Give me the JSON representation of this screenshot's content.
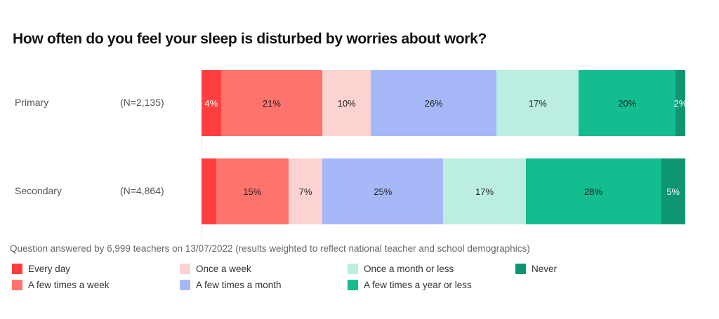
{
  "chart_data": {
    "type": "bar",
    "orientation": "horizontal",
    "stacked": true,
    "normalized": true,
    "title": "How often do you feel your sleep is disturbed by worries about work?",
    "xlabel": "",
    "ylabel": "",
    "categories": [
      "Primary",
      "Secondary"
    ],
    "category_n": [
      "(N=2,135)",
      "(N=4,864)"
    ],
    "series": [
      {
        "name": "Every day",
        "color": "#ff3f3f",
        "values": [
          4,
          3
        ],
        "labels": [
          "4%",
          ""
        ],
        "label_color": "#ffffff"
      },
      {
        "name": "A few times a week",
        "color": "#ff736d",
        "values": [
          21,
          15
        ],
        "labels": [
          "21%",
          "15%"
        ],
        "label_color": "#222222"
      },
      {
        "name": "Once a week",
        "color": "#fcd3d1",
        "values": [
          10,
          7
        ],
        "labels": [
          "10%",
          "7%"
        ],
        "label_color": "#222222"
      },
      {
        "name": "A few times a month",
        "color": "#a6b8f8",
        "values": [
          26,
          25
        ],
        "labels": [
          "26%",
          "25%"
        ],
        "label_color": "#222222"
      },
      {
        "name": "Once a month or less",
        "color": "#bbeee0",
        "values": [
          17,
          17
        ],
        "labels": [
          "17%",
          "17%"
        ],
        "label_color": "#222222"
      },
      {
        "name": "A few times a year or less",
        "color": "#13bd8f",
        "values": [
          20,
          28
        ],
        "labels": [
          "20%",
          "28%"
        ],
        "label_color": "#222222"
      },
      {
        "name": "Never",
        "color": "#0e9672",
        "values": [
          2,
          5
        ],
        "labels": [
          "2%",
          "5%"
        ],
        "label_color": "#ffffff"
      }
    ],
    "legend_position": "bottom",
    "grid": false,
    "xlim": [
      0,
      100
    ],
    "note": "Question answered by 6,999 teachers on 13/07/2022 (results weighted to reflect national teacher and school demographics)"
  },
  "title": "How often do you feel your sleep is disturbed by worries about work?",
  "rows": [
    {
      "label": "Primary",
      "n": "(N=2,135)"
    },
    {
      "label": "Secondary",
      "n": "(N=4,864)"
    }
  ],
  "note": "Question answered by 6,999 teachers on 13/07/2022 (results weighted to reflect national teacher and school demographics)",
  "legend": [
    {
      "label": "Every day",
      "color": "#ff3f3f"
    },
    {
      "label": "A few times a week",
      "color": "#ff736d"
    },
    {
      "label": "Once a week",
      "color": "#fcd3d1"
    },
    {
      "label": "A few times a month",
      "color": "#a6b8f8"
    },
    {
      "label": "Once a month or less",
      "color": "#bbeee0"
    },
    {
      "label": "A few times a year or less",
      "color": "#13bd8f"
    },
    {
      "label": "Never",
      "color": "#0e9672"
    }
  ]
}
